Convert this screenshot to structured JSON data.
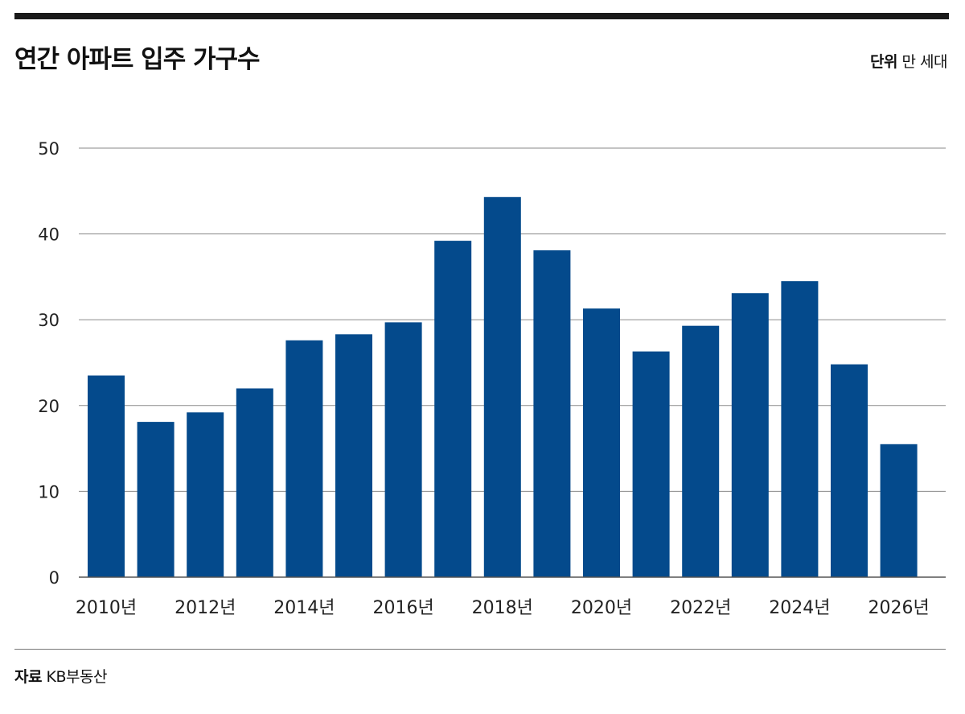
{
  "header": {
    "title": "연간 아파트 입주 가구수",
    "unit_label": "단위",
    "unit_value": "만 세대"
  },
  "footer": {
    "source_label": "자료",
    "source_value": "KB부동산"
  },
  "colors": {
    "bar": "#044a8c",
    "grid": "#8a8a8a",
    "rule": "#1a1a1a"
  },
  "chart_data": {
    "type": "bar",
    "title": "연간 아파트 입주 가구수",
    "xlabel": "",
    "ylabel": "",
    "ylim": [
      0,
      50
    ],
    "yticks": [
      0,
      10,
      20,
      30,
      40,
      50
    ],
    "categories": [
      "2010년",
      "2011년",
      "2012년",
      "2013년",
      "2014년",
      "2015년",
      "2016년",
      "2017년",
      "2018년",
      "2019년",
      "2020년",
      "2021년",
      "2022년",
      "2023년",
      "2024년",
      "2025년",
      "2026년"
    ],
    "x_tick_labels": [
      "2010년",
      "2012년",
      "2014년",
      "2016년",
      "2018년",
      "2020년",
      "2022년",
      "2024년",
      "2026년"
    ],
    "values": [
      23.5,
      18.1,
      19.2,
      22.0,
      27.6,
      28.3,
      29.7,
      39.2,
      44.3,
      38.1,
      31.3,
      26.3,
      29.3,
      33.1,
      34.5,
      24.8,
      15.5
    ],
    "grid": true,
    "legend": "none"
  }
}
